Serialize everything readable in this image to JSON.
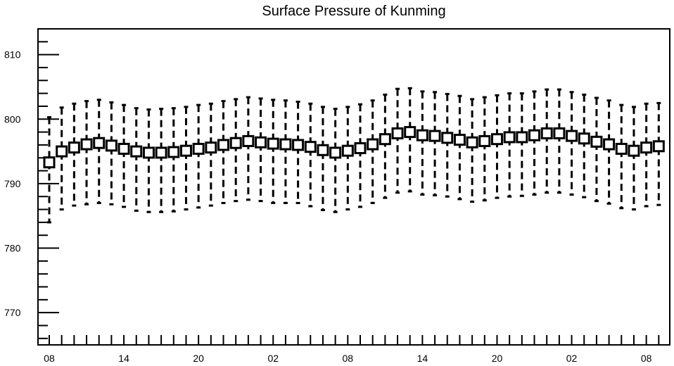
{
  "chart_data": {
    "type": "box",
    "title": "Surface Pressure of Kunming",
    "xlabel": "",
    "ylabel": "",
    "ylim": [
      765,
      814
    ],
    "yticks": [
      770,
      780,
      790,
      800,
      810
    ],
    "xticks": [
      {
        "index": 0,
        "label": "08"
      },
      {
        "index": 6,
        "label": "14"
      },
      {
        "index": 12,
        "label": "20"
      },
      {
        "index": 18,
        "label": "02"
      },
      {
        "index": 24,
        "label": "08"
      },
      {
        "index": 30,
        "label": "14"
      },
      {
        "index": 36,
        "label": "20"
      },
      {
        "index": 42,
        "label": "02"
      },
      {
        "index": 48,
        "label": "08"
      }
    ],
    "grid": false,
    "series": [
      {
        "mean": [
          793.3,
          795.0,
          795.6,
          796.1,
          796.3,
          795.9,
          795.4,
          795.0,
          794.8,
          794.8,
          794.9,
          795.1,
          795.4,
          795.6,
          796.0,
          796.3,
          796.6,
          796.4,
          796.2,
          796.1,
          796.0,
          795.7,
          795.2,
          794.8,
          795.1,
          795.5,
          796.1,
          796.9,
          797.8,
          798.0,
          797.5,
          797.4,
          797.1,
          796.8,
          796.4,
          796.6,
          796.9,
          797.2,
          797.2,
          797.5,
          797.8,
          797.8,
          797.4,
          797.0,
          796.5,
          796.1,
          795.4,
          795.1,
          795.6,
          795.8
        ],
        "low": [
          784.0,
          786.0,
          786.6,
          786.8,
          787.0,
          786.8,
          786.4,
          785.8,
          785.6,
          785.6,
          785.7,
          786.0,
          786.3,
          786.6,
          787.0,
          787.3,
          787.5,
          787.3,
          787.0,
          787.0,
          787.0,
          786.5,
          785.9,
          785.6,
          786.0,
          786.4,
          787.0,
          787.8,
          788.6,
          788.8,
          788.3,
          788.2,
          788.0,
          787.6,
          787.2,
          787.4,
          787.8,
          788.0,
          788.1,
          788.3,
          788.6,
          788.6,
          788.3,
          787.9,
          787.3,
          786.9,
          786.2,
          786.0,
          786.5,
          786.7
        ],
        "high": [
          800.3,
          801.8,
          802.4,
          802.8,
          803.0,
          802.6,
          802.2,
          801.7,
          801.5,
          801.6,
          801.7,
          801.9,
          802.2,
          802.4,
          802.8,
          803.1,
          803.4,
          803.2,
          803.0,
          802.9,
          802.7,
          802.4,
          801.9,
          801.6,
          801.9,
          802.3,
          802.9,
          803.8,
          804.7,
          804.8,
          804.3,
          804.2,
          803.9,
          803.6,
          803.1,
          803.4,
          803.7,
          804.0,
          804.0,
          804.3,
          804.6,
          804.6,
          804.2,
          803.8,
          803.3,
          802.9,
          802.2,
          801.9,
          802.4,
          802.5
        ]
      }
    ]
  }
}
